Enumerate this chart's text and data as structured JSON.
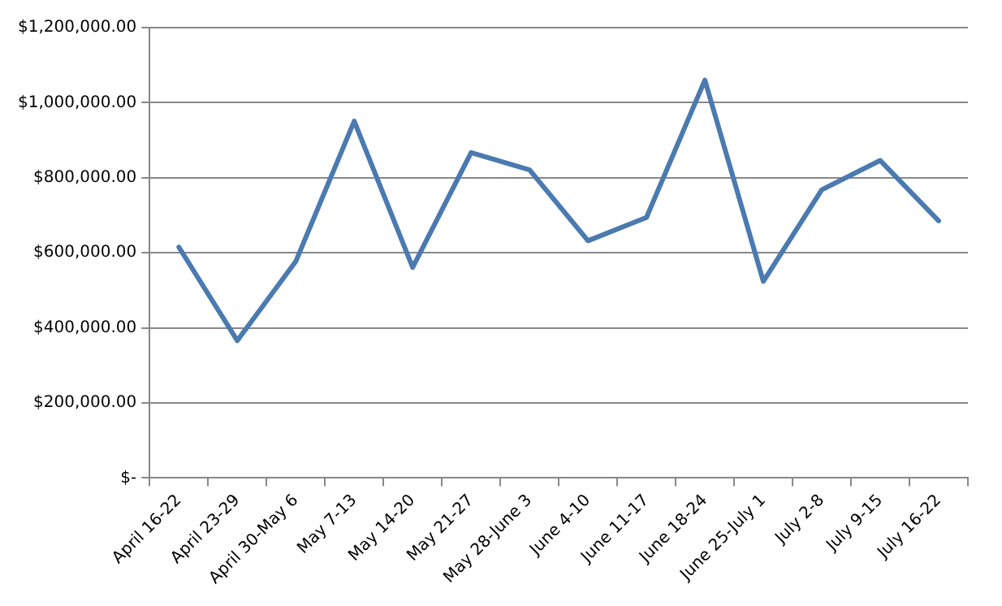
{
  "chart_data": {
    "type": "line",
    "categories": [
      "April 16-22",
      "April 23-29",
      "April 30-May 6",
      "May 7-13",
      "May 14-20",
      "May 21-27",
      "May 28-June 3",
      "June 4-10",
      "June 11-17",
      "June 18-24",
      "June 25-July 1",
      "July 2-8",
      "July 9-15",
      "July 16-22"
    ],
    "series": [
      {
        "color": "#4a7ab0",
        "values": [
          615000,
          366000,
          577000,
          951000,
          561000,
          867000,
          821000,
          632000,
          694000,
          1060000,
          524000,
          768000,
          846000,
          685000
        ]
      }
    ],
    "ylim": [
      0,
      1200000
    ],
    "yticks": [
      {
        "value": 0,
        "label": "$-"
      },
      {
        "value": 200000,
        "label": "$200,000.00"
      },
      {
        "value": 400000,
        "label": "$400,000.00"
      },
      {
        "value": 600000,
        "label": "$600,000.00"
      },
      {
        "value": 800000,
        "label": "$800,000.00"
      },
      {
        "value": 1000000,
        "label": "$1,000,000.00"
      },
      {
        "value": 1200000,
        "label": "$1,200,000.00"
      }
    ],
    "grid": "y",
    "legend": false,
    "marker": "none",
    "line_style": "solid"
  }
}
